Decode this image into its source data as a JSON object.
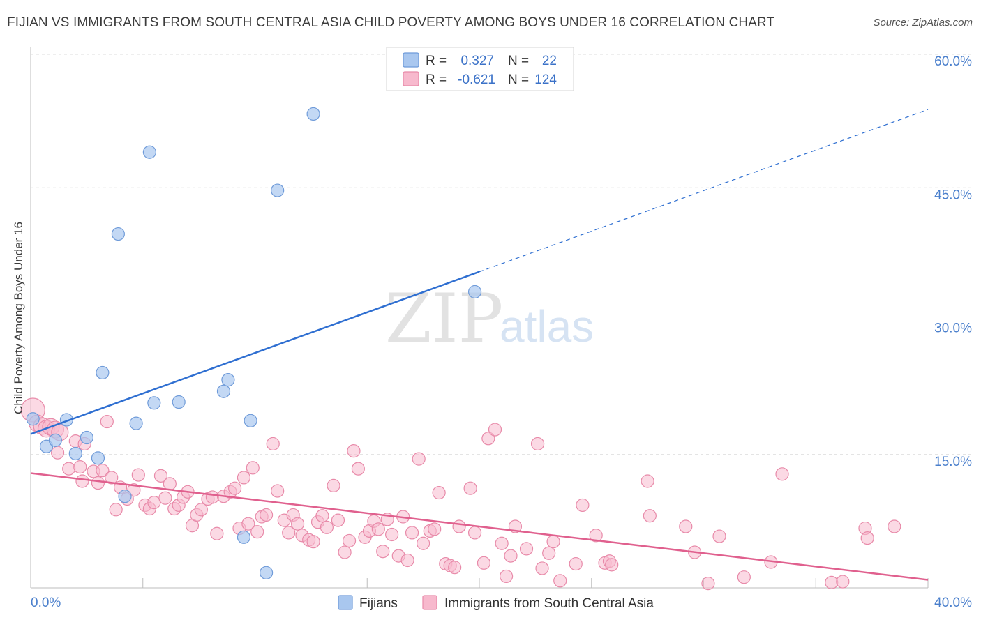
{
  "chart_data": {
    "type": "scatter",
    "title": "FIJIAN VS IMMIGRANTS FROM SOUTH CENTRAL ASIA CHILD POVERTY AMONG BOYS UNDER 16 CORRELATION CHART",
    "source": "Source: ZipAtlas.com",
    "ylabel": "Child Poverty Among Boys Under 16",
    "xlim": [
      0,
      40
    ],
    "ylim": [
      0,
      60
    ],
    "x_tick_labels": [
      "0.0%",
      "40.0%"
    ],
    "y_ticks": [
      15,
      30,
      45,
      60
    ],
    "y_tick_labels": [
      "15.0%",
      "30.0%",
      "45.0%",
      "60.0%"
    ],
    "watermark": [
      "ZIP",
      "atlas"
    ],
    "legend_stats": [
      {
        "r_label": "R =",
        "r_value": "0.327",
        "n_label": "N =",
        "n_value": "22"
      },
      {
        "r_label": "R =",
        "r_value": "-0.621",
        "n_label": "N =",
        "n_value": "124"
      }
    ],
    "series": [
      {
        "name": "Fijians",
        "color": "#a9c7ef",
        "edge": "#6f9bd9",
        "line_color": "#2f6fd1",
        "trend": {
          "x0": 0,
          "y0": 17.3,
          "x1": 40,
          "y1": 53.8,
          "solid_until": 20
        },
        "points": [
          [
            0.1,
            19.0
          ],
          [
            1.6,
            18.9
          ],
          [
            0.7,
            15.9
          ],
          [
            1.1,
            16.6
          ],
          [
            2.5,
            16.9
          ],
          [
            2.0,
            15.1
          ],
          [
            3.0,
            14.6
          ],
          [
            3.2,
            24.2
          ],
          [
            3.9,
            39.8
          ],
          [
            4.2,
            10.3
          ],
          [
            4.7,
            18.5
          ],
          [
            5.3,
            49.0
          ],
          [
            5.5,
            20.8
          ],
          [
            6.6,
            20.9
          ],
          [
            8.6,
            22.1
          ],
          [
            8.8,
            23.4
          ],
          [
            9.5,
            5.7
          ],
          [
            9.8,
            18.8
          ],
          [
            10.5,
            1.7
          ],
          [
            11.0,
            44.7
          ],
          [
            12.6,
            53.3
          ],
          [
            19.8,
            33.3
          ]
        ]
      },
      {
        "name": "Immigrants from South Central Asia",
        "color": "#f7b9cd",
        "edge": "#e88aa9",
        "line_color": "#e0608e",
        "trend": {
          "x0": 0,
          "y0": 12.9,
          "x1": 40,
          "y1": 0.9,
          "solid_until": 40
        },
        "points": [
          [
            0.1,
            20.0
          ],
          [
            0.3,
            18.5
          ],
          [
            0.5,
            18.2
          ],
          [
            0.7,
            17.9
          ],
          [
            0.9,
            18.1
          ],
          [
            1.1,
            17.8
          ],
          [
            1.3,
            17.5
          ],
          [
            1.2,
            15.2
          ],
          [
            1.7,
            13.4
          ],
          [
            2.0,
            16.5
          ],
          [
            2.4,
            16.2
          ],
          [
            2.2,
            13.6
          ],
          [
            2.3,
            12.0
          ],
          [
            2.8,
            13.1
          ],
          [
            3.0,
            11.8
          ],
          [
            3.2,
            13.2
          ],
          [
            3.4,
            18.7
          ],
          [
            3.6,
            12.4
          ],
          [
            3.8,
            8.8
          ],
          [
            4.0,
            11.3
          ],
          [
            4.3,
            10.0
          ],
          [
            4.6,
            11.0
          ],
          [
            4.8,
            12.7
          ],
          [
            5.1,
            9.3
          ],
          [
            5.3,
            8.9
          ],
          [
            5.5,
            9.6
          ],
          [
            5.8,
            12.6
          ],
          [
            6.0,
            10.1
          ],
          [
            6.2,
            11.7
          ],
          [
            6.4,
            8.9
          ],
          [
            6.6,
            9.3
          ],
          [
            6.8,
            10.2
          ],
          [
            7.0,
            10.8
          ],
          [
            7.2,
            7.0
          ],
          [
            7.4,
            8.2
          ],
          [
            7.6,
            8.8
          ],
          [
            7.9,
            10.0
          ],
          [
            8.1,
            10.2
          ],
          [
            8.3,
            6.1
          ],
          [
            8.6,
            10.3
          ],
          [
            8.9,
            10.8
          ],
          [
            9.1,
            11.2
          ],
          [
            9.3,
            6.7
          ],
          [
            9.5,
            12.4
          ],
          [
            9.7,
            7.2
          ],
          [
            9.9,
            13.5
          ],
          [
            10.1,
            6.3
          ],
          [
            10.3,
            8.0
          ],
          [
            10.5,
            8.2
          ],
          [
            10.8,
            16.2
          ],
          [
            11.0,
            10.9
          ],
          [
            11.3,
            7.6
          ],
          [
            11.5,
            6.2
          ],
          [
            11.7,
            8.2
          ],
          [
            11.9,
            7.2
          ],
          [
            12.1,
            5.9
          ],
          [
            12.4,
            5.4
          ],
          [
            12.6,
            5.2
          ],
          [
            12.8,
            7.4
          ],
          [
            13.0,
            8.1
          ],
          [
            13.2,
            6.8
          ],
          [
            13.5,
            11.5
          ],
          [
            13.7,
            7.6
          ],
          [
            14.0,
            4.0
          ],
          [
            14.2,
            5.3
          ],
          [
            14.4,
            15.4
          ],
          [
            14.6,
            13.4
          ],
          [
            14.9,
            5.7
          ],
          [
            15.1,
            6.4
          ],
          [
            15.3,
            7.5
          ],
          [
            15.5,
            6.6
          ],
          [
            15.7,
            4.1
          ],
          [
            15.9,
            7.7
          ],
          [
            16.1,
            6.0
          ],
          [
            16.4,
            3.6
          ],
          [
            16.6,
            8.0
          ],
          [
            16.8,
            3.1
          ],
          [
            17.0,
            6.2
          ],
          [
            17.3,
            14.5
          ],
          [
            17.5,
            5.0
          ],
          [
            17.8,
            6.4
          ],
          [
            18.0,
            6.6
          ],
          [
            18.2,
            10.7
          ],
          [
            18.5,
            2.7
          ],
          [
            18.7,
            2.5
          ],
          [
            18.9,
            2.3
          ],
          [
            19.1,
            6.9
          ],
          [
            19.6,
            11.2
          ],
          [
            19.8,
            6.2
          ],
          [
            20.2,
            2.8
          ],
          [
            20.4,
            16.8
          ],
          [
            20.7,
            17.8
          ],
          [
            21.0,
            5.0
          ],
          [
            21.2,
            1.3
          ],
          [
            21.4,
            3.6
          ],
          [
            21.6,
            6.9
          ],
          [
            22.1,
            4.4
          ],
          [
            22.6,
            16.2
          ],
          [
            22.8,
            2.2
          ],
          [
            23.1,
            3.9
          ],
          [
            23.3,
            5.2
          ],
          [
            23.6,
            0.8
          ],
          [
            24.3,
            2.7
          ],
          [
            24.6,
            9.3
          ],
          [
            25.2,
            5.9
          ],
          [
            25.6,
            2.8
          ],
          [
            25.8,
            3.0
          ],
          [
            25.9,
            2.6
          ],
          [
            27.5,
            12.0
          ],
          [
            27.6,
            8.1
          ],
          [
            29.2,
            6.9
          ],
          [
            29.6,
            4.0
          ],
          [
            30.2,
            0.5
          ],
          [
            30.7,
            5.8
          ],
          [
            31.8,
            1.2
          ],
          [
            33.0,
            2.9
          ],
          [
            33.5,
            12.8
          ],
          [
            35.7,
            0.6
          ],
          [
            36.2,
            0.7
          ],
          [
            37.2,
            6.7
          ],
          [
            37.3,
            5.6
          ],
          [
            38.5,
            6.9
          ]
        ]
      }
    ]
  },
  "legend_bottom": [
    {
      "label": "Fijians",
      "color": "#a9c7ef",
      "edge": "#6f9bd9"
    },
    {
      "label": "Immigrants from South Central Asia",
      "color": "#f7b9cd",
      "edge": "#e88aa9"
    }
  ]
}
